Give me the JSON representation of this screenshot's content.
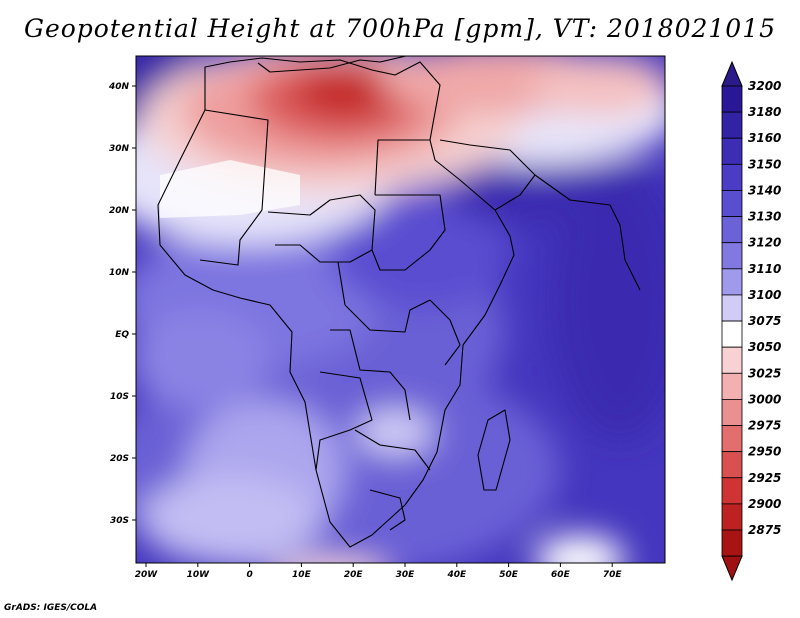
{
  "title": "Geopotential Height at 700hPa [gpm], VT: 2018021015",
  "credit": "GrADS: IGES/COLA",
  "map": {
    "region": "Africa",
    "variable": "Geopotential Height at 700hPa",
    "units": "gpm",
    "valid_time": "2018021015",
    "lon_range": [
      -23,
      80
    ],
    "lat_range": [
      -37,
      45
    ],
    "lon_ticks": [
      "20W",
      "10W",
      "0",
      "10E",
      "20E",
      "30E",
      "40E",
      "50E",
      "60E",
      "70E"
    ],
    "lat_ticks": [
      "40N",
      "30N",
      "20N",
      "10N",
      "EQ",
      "10S",
      "20S",
      "30S"
    ]
  },
  "colorbar": {
    "labels": [
      "3200",
      "3180",
      "3160",
      "3150",
      "3140",
      "3130",
      "3120",
      "3110",
      "3100",
      "3075",
      "3050",
      "3025",
      "3000",
      "2975",
      "2950",
      "2925",
      "2900",
      "2875"
    ],
    "colors": [
      "#281896",
      "#3222a4",
      "#3c2db4",
      "#4a3cc4",
      "#5a4ed0",
      "#6c62d8",
      "#8278e2",
      "#a09aec",
      "#d0ccf6",
      "#ffffff",
      "#f8d2d2",
      "#f2b0b0",
      "#ea9090",
      "#e26e6e",
      "#d85050",
      "#ce3434",
      "#bc2222",
      "#a81414"
    ],
    "top_arrow_color": "#2a1a8a",
    "bottom_arrow_color": "#a01010"
  }
}
